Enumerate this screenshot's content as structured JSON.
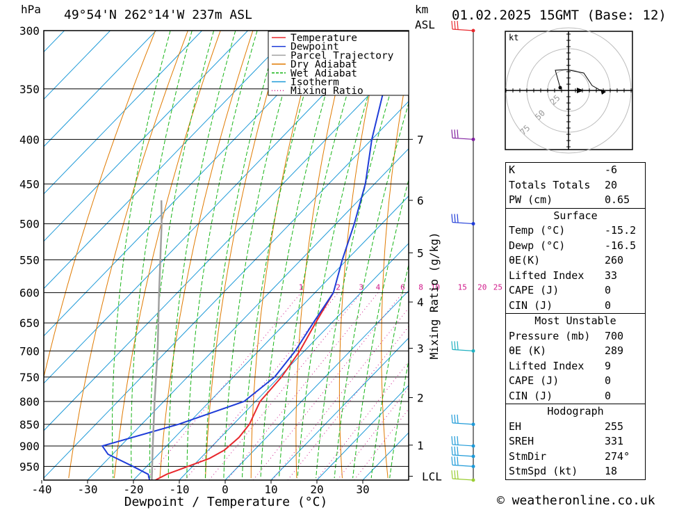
{
  "header": {
    "pressure_unit": "hPa",
    "location": "49°54'N 262°14'W 237m ASL",
    "height_unit_km": "km",
    "height_unit_asl": "ASL",
    "datetime": "01.02.2025 15GMT (Base: 12)"
  },
  "footer": {
    "copyright": "© weatheronline.co.uk"
  },
  "chart_data": {
    "type": "line",
    "title": "49°54'N 262°14'W 237m ASL",
    "xlabel": "Dewpoint / Temperature (°C)",
    "ylabel": "hPa",
    "x_ticks": [
      -40,
      -30,
      -20,
      -10,
      0,
      10,
      20,
      30
    ],
    "x_tick_labels": [
      "-40",
      "-30",
      "-20",
      "-10",
      "0",
      "10",
      "20",
      "30"
    ],
    "y_ticks": [
      300,
      350,
      400,
      450,
      500,
      550,
      600,
      650,
      700,
      750,
      800,
      850,
      900,
      950
    ],
    "y_scale": "log",
    "pressure_range": [
      300,
      985
    ],
    "legend": {
      "placement": "top-right",
      "entries": [
        {
          "label": "Temperature",
          "color": "#e8282d"
        },
        {
          "label": "Dewpoint",
          "color": "#1f3cd8"
        },
        {
          "label": "Parcel Trajectory",
          "color": "#a0a0a0"
        },
        {
          "label": "Dry Adiabat",
          "color": "#e07a00"
        },
        {
          "label": "Wet Adiabat",
          "color": "#16b416"
        },
        {
          "label": "Isotherm",
          "color": "#1e9ad8"
        },
        {
          "label": "Mixing Ratio",
          "color": "#d0188a"
        }
      ]
    },
    "series": [
      {
        "name": "Temperature",
        "color": "#e8282d",
        "points": [
          [
            985,
            -15.2
          ],
          [
            970,
            -14.0
          ],
          [
            950,
            -11.0
          ],
          [
            930,
            -8.0
          ],
          [
            910,
            -6.5
          ],
          [
            880,
            -6.0
          ],
          [
            850,
            -6.5
          ],
          [
            800,
            -9.0
          ],
          [
            750,
            -9.5
          ],
          [
            700,
            -11.0
          ],
          [
            650,
            -13.5
          ],
          [
            600,
            -16.0
          ]
        ]
      },
      {
        "name": "Dewpoint",
        "color": "#1f3cd8",
        "points": [
          [
            985,
            -16.5
          ],
          [
            970,
            -18.0
          ],
          [
            950,
            -23.0
          ],
          [
            920,
            -31.0
          ],
          [
            900,
            -34.0
          ],
          [
            850,
            -22.0
          ],
          [
            800,
            -12.5
          ],
          [
            750,
            -11.0
          ],
          [
            700,
            -12.0
          ],
          [
            650,
            -14.0
          ],
          [
            600,
            -16.0
          ],
          [
            550,
            -21.0
          ],
          [
            500,
            -26.0
          ],
          [
            450,
            -32.0
          ],
          [
            400,
            -40.0
          ],
          [
            350,
            -48.0
          ],
          [
            300,
            -58.0
          ]
        ]
      },
      {
        "name": "Parcel Trajectory",
        "color": "#a0a0a0",
        "points": [
          [
            985,
            -16.0
          ],
          [
            900,
            -23.0
          ],
          [
            800,
            -32.0
          ],
          [
            700,
            -42.0
          ],
          [
            600,
            -54.0
          ],
          [
            500,
            -68.0
          ],
          [
            470,
            -73.0
          ]
        ]
      }
    ],
    "mixing_ratio_label": "Mixing Ratio (g/kg)",
    "mixing_ratios": [
      1,
      2,
      3,
      4,
      6,
      8,
      10,
      15,
      20,
      25
    ],
    "mixing_ratio_tick_labels": [
      "1",
      "2",
      "3",
      "4",
      "6",
      "8",
      "10",
      "15",
      "20",
      "25"
    ],
    "height_axis": {
      "unit": "km ASL",
      "ticks": [
        {
          "label": "7",
          "pressure": 400
        },
        {
          "label": "6",
          "pressure": 470
        },
        {
          "label": "5",
          "pressure": 540
        },
        {
          "label": "4",
          "pressure": 615
        },
        {
          "label": "3",
          "pressure": 695
        },
        {
          "label": "2",
          "pressure": 792
        },
        {
          "label": "1",
          "pressure": 898
        },
        {
          "label": "LCL",
          "pressure": 975
        }
      ]
    },
    "wind_barbs": [
      {
        "pressure": 300,
        "color": "#e8282d"
      },
      {
        "pressure": 400,
        "color": "#8020a0"
      },
      {
        "pressure": 500,
        "color": "#1f3cd8"
      },
      {
        "pressure": 700,
        "color": "#20b0c0"
      },
      {
        "pressure": 850,
        "color": "#1e9ad8"
      },
      {
        "pressure": 900,
        "color": "#1e9ad8"
      },
      {
        "pressure": 925,
        "color": "#1e9ad8"
      },
      {
        "pressure": 950,
        "color": "#1e9ad8"
      },
      {
        "pressure": 985,
        "color": "#9acd32"
      }
    ],
    "hodograph": {
      "unit": "kt",
      "ring_labels": [
        "25",
        "50",
        "75"
      ]
    }
  },
  "indices": {
    "basic": [
      {
        "label": "K",
        "value": "-6"
      },
      {
        "label": "Totals Totals",
        "value": "20"
      },
      {
        "label": "PW (cm)",
        "value": "0.65"
      }
    ],
    "surface": {
      "title": "Surface",
      "rows": [
        {
          "label": "Temp (°C)",
          "value": "-15.2"
        },
        {
          "label": "Dewp (°C)",
          "value": "-16.5"
        },
        {
          "label": "θE(K)",
          "value": "260"
        },
        {
          "label": "Lifted Index",
          "value": "33"
        },
        {
          "label": "CAPE (J)",
          "value": "0"
        },
        {
          "label": "CIN (J)",
          "value": "0"
        }
      ]
    },
    "most_unstable": {
      "title": "Most Unstable",
      "rows": [
        {
          "label": "Pressure (mb)",
          "value": "700"
        },
        {
          "label": "θE (K)",
          "value": "289"
        },
        {
          "label": "Lifted Index",
          "value": "9"
        },
        {
          "label": "CAPE (J)",
          "value": "0"
        },
        {
          "label": "CIN (J)",
          "value": "0"
        }
      ]
    },
    "hodograph": {
      "title": "Hodograph",
      "rows": [
        {
          "label": "EH",
          "value": "255"
        },
        {
          "label": "SREH",
          "value": "331"
        },
        {
          "label": "StmDir",
          "value": "274°"
        },
        {
          "label": "StmSpd (kt)",
          "value": "18"
        }
      ]
    }
  }
}
